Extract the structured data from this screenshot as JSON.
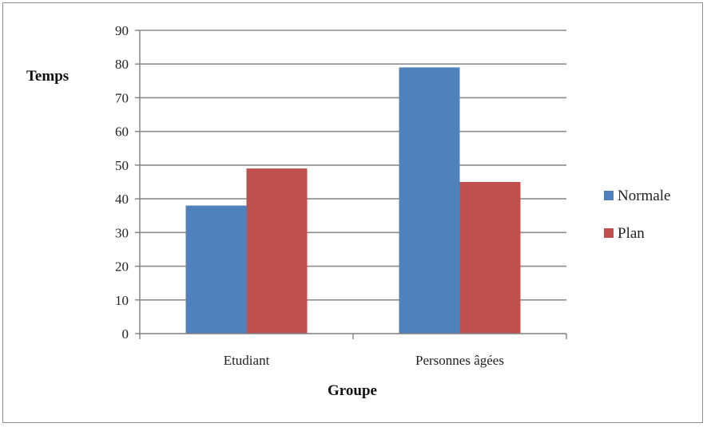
{
  "chart_data": {
    "type": "bar",
    "title": "",
    "xlabel": "Groupe",
    "ylabel": "Temps",
    "categories": [
      "Etudiant",
      "Personnes âgées"
    ],
    "series": [
      {
        "name": "Normale",
        "values": [
          38,
          79
        ],
        "color": "#4f81bd"
      },
      {
        "name": "Plan",
        "values": [
          49,
          45
        ],
        "color": "#c0504d"
      }
    ],
    "ylim": [
      0,
      90
    ],
    "yticks": [
      0,
      10,
      20,
      30,
      40,
      50,
      60,
      70,
      80,
      90
    ],
    "grid": true,
    "legend": "right"
  }
}
